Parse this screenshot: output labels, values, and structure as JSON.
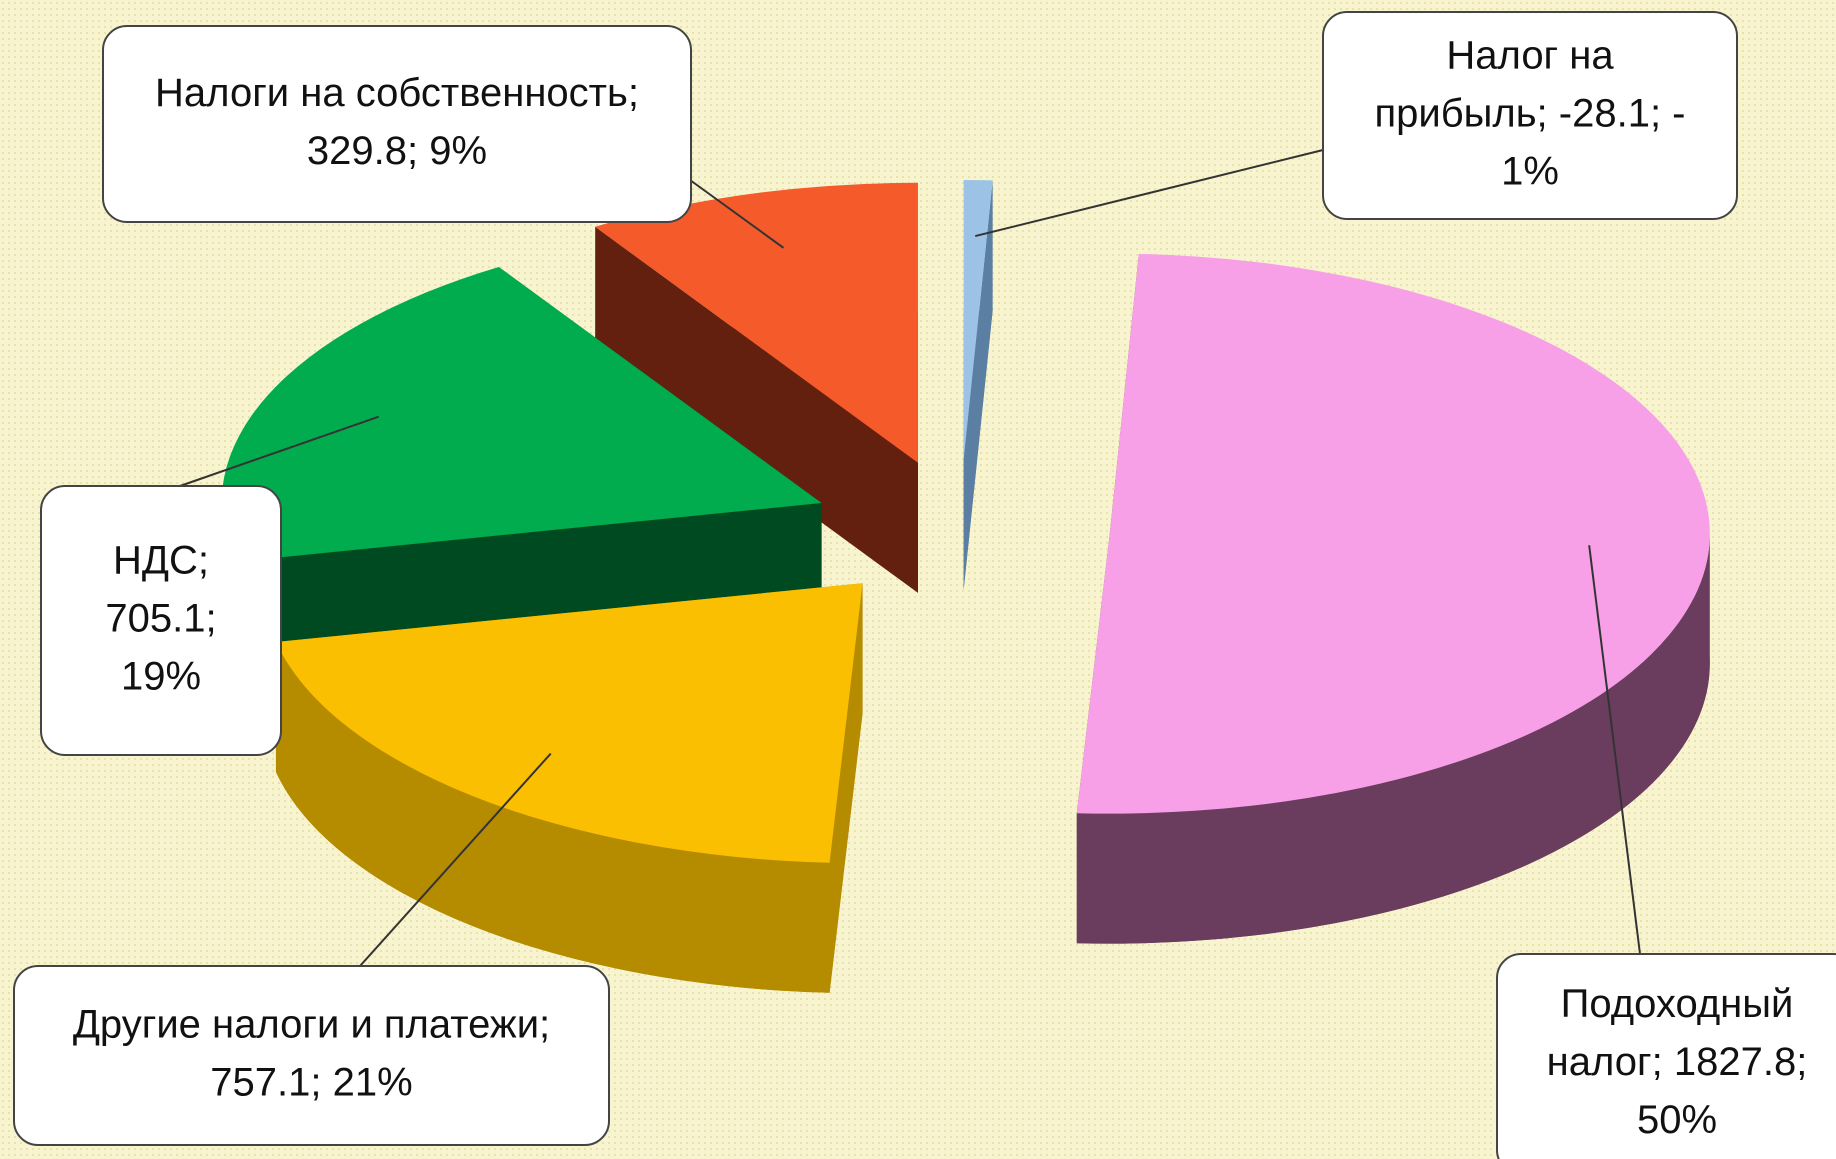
{
  "chart_data": {
    "type": "pie",
    "values": [
      -28.1,
      1827.8,
      757.1,
      705.1,
      329.8
    ],
    "value_labels": [
      [
        "Налог на",
        "прибыль; -28.1; -",
        "1%"
      ],
      [
        "Подоходный",
        "налог; 1827.8;",
        "50%"
      ],
      [
        "Другие налоги и платежи;",
        "757.1; 21%"
      ],
      [
        "НДС;",
        "705.1;",
        "19%"
      ],
      [
        "Налоги на собственность;",
        "329.8; 9%"
      ]
    ],
    "colors": [
      "#9cc3e6",
      "#f7a0e8",
      "#f9bf00",
      "#00ac4e",
      "#f55a2a"
    ],
    "side_colors": [
      "#5a7fa3",
      "#6a3d5e",
      "#b58b00",
      "#004a22",
      "#63200f"
    ]
  }
}
